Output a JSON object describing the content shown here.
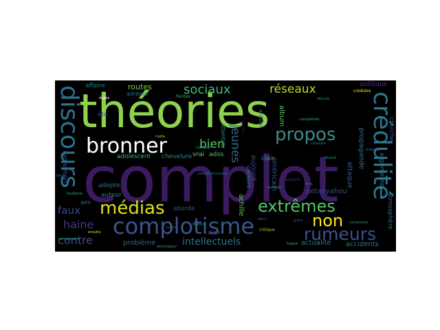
{
  "words": [
    {
      "text": "complot",
      "color": "#3b1b5f"
    },
    {
      "text": "théories",
      "color": "#8fd14f"
    },
    {
      "text": "discours",
      "color": "#2b728e"
    },
    {
      "text": "crédulité",
      "color": "#2a788e"
    },
    {
      "text": "bronner",
      "color": "#ffffff"
    },
    {
      "text": "complotisme",
      "color": "#39568c"
    },
    {
      "text": "médias",
      "color": "#dde318"
    },
    {
      "text": "extrêmes",
      "color": "#52c569"
    },
    {
      "text": "propos",
      "color": "#3e8a8c"
    },
    {
      "text": "rumeurs",
      "color": "#3b528b"
    },
    {
      "text": "non",
      "color": "#fde725"
    },
    {
      "text": "réseaux",
      "color": "#b5de2b"
    },
    {
      "text": "sociaux",
      "color": "#3fbc73"
    },
    {
      "text": "faux",
      "color": "#3e4989"
    },
    {
      "text": "haine",
      "color": "#443a83"
    },
    {
      "text": "contre",
      "color": "#3e4a89"
    },
    {
      "text": "bien",
      "color": "#5ec962"
    },
    {
      "text": "jeunes",
      "color": "#31688e"
    },
    {
      "text": "intellectuels",
      "color": "#2c728e"
    },
    {
      "text": "routes",
      "color": "#7ad151"
    },
    {
      "text": "affaire",
      "color": "#26828e"
    },
    {
      "text": "problème",
      "color": "#31688e"
    },
    {
      "text": "adolescent",
      "color": "#35b779"
    },
    {
      "text": "chevelure",
      "color": "#21918c"
    },
    {
      "text": "auteur",
      "color": "#25858e"
    },
    {
      "text": "adepte",
      "color": "#2c718e"
    },
    {
      "text": "aborde",
      "color": "#3a548c"
    },
    {
      "text": "alex",
      "color": "#443983"
    },
    {
      "text": "achille",
      "color": "#5ec962"
    },
    {
      "text": "actualité",
      "color": "#287c8e"
    },
    {
      "text": "accidents",
      "color": "#2a778e"
    },
    {
      "text": "propagande",
      "color": "#31688e"
    },
    {
      "text": "netanyahou",
      "color": "#3e4c8a"
    },
    {
      "text": "américain",
      "color": "#3b528b"
    },
    {
      "text": "aujourd",
      "color": "#3f4788"
    },
    {
      "text": "vrai",
      "color": "#7fd34e"
    },
    {
      "text": "ados",
      "color": "#56c667"
    },
    {
      "text": "clair",
      "color": "#1fa088"
    },
    {
      "text": "album",
      "color": "#5ec962"
    },
    {
      "text": "politique",
      "color": "#46337e"
    },
    {
      "text": "attaque",
      "color": "#38598c"
    },
    {
      "text": "cherche",
      "color": "#3d4e8a"
    },
    {
      "text": "argumente",
      "color": "#2d708e"
    },
    {
      "text": "atmosphère",
      "color": "#2f6b8e"
    },
    {
      "text": "casterman",
      "color": "#38588c"
    },
    {
      "text": "été",
      "color": "#3f4889"
    },
    {
      "text": "ami",
      "color": "#29798e"
    },
    {
      "text": "attentats",
      "color": "#1f978b"
    },
    {
      "text": "autour",
      "color": "#2e6d8e"
    },
    {
      "text": "clément",
      "color": "#25858e"
    },
    {
      "text": "adresse",
      "color": "#2b758e"
    },
    {
      "text": "feintes",
      "color": "#35b779"
    },
    {
      "text": "complotiste",
      "color": "#31b57b"
    },
    {
      "text": "crédules",
      "color": "#fde725"
    },
    {
      "text": "collégien",
      "color": "#29af7f"
    },
    {
      "text": "critique",
      "color": "#9fda3a"
    },
    {
      "text": "dessinateur",
      "color": "#22a785"
    },
    {
      "text": "empire",
      "color": "#46327e"
    },
    {
      "text": "humour",
      "color": "#20a486"
    },
    {
      "text": "grâce",
      "color": "#3b528b"
    },
    {
      "text": "compromis",
      "color": "#1f9a8a"
    },
    {
      "text": "conspirationniste",
      "color": "#2a788e"
    },
    {
      "text": "histoire",
      "color": "#1e9b8a"
    },
    {
      "text": "début",
      "color": "#3e4c8a"
    },
    {
      "text": "dupés",
      "color": "#ffffff"
    },
    {
      "text": "comprendre",
      "color": "#22a785"
    },
    {
      "text": "ensuite",
      "color": "#f1e51d"
    },
    {
      "text": "enquête",
      "color": "#2c738e"
    },
    {
      "text": "illustré",
      "color": "#1f9e89"
    },
    {
      "text": "france",
      "color": "#3fbc73"
    },
    {
      "text": "constate",
      "color": "#24878e"
    },
    {
      "text": "facile",
      "color": "#2f6c8e"
    },
    {
      "text": "fourberie",
      "color": "#29af7f"
    },
    {
      "text": "journal",
      "color": "#440154"
    },
    {
      "text": "face",
      "color": "#2a788e"
    },
    {
      "text": "dénués",
      "color": "#1f9e89"
    },
    {
      "text": "mafia",
      "color": "#8fd744"
    },
    {
      "text": "sujets",
      "color": "#365c8d"
    }
  ]
}
